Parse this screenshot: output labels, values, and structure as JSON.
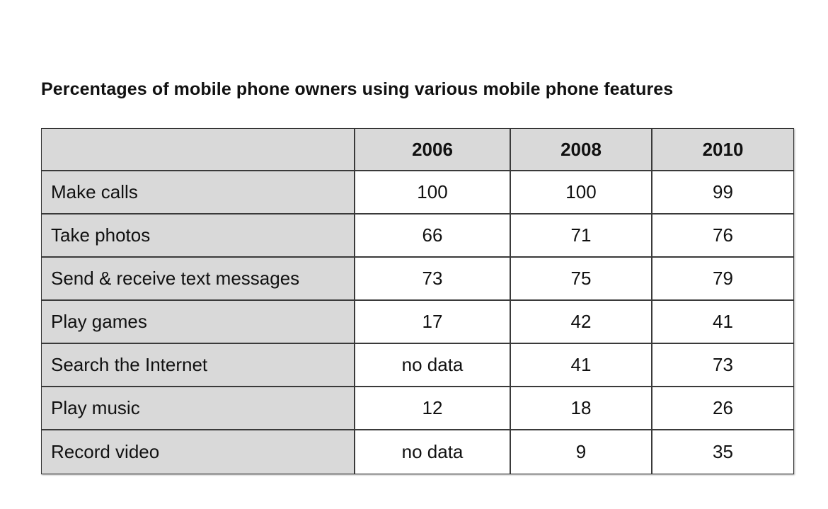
{
  "chart_data": {
    "type": "table",
    "title": "Percentages of mobile phone owners using various mobile phone features",
    "columns": [
      "",
      "2006",
      "2008",
      "2010"
    ],
    "rows": [
      {
        "feature": "Make calls",
        "values": [
          "100",
          "100",
          "99"
        ]
      },
      {
        "feature": "Take photos",
        "values": [
          "66",
          "71",
          "76"
        ]
      },
      {
        "feature": "Send & receive text messages",
        "values": [
          "73",
          "75",
          "79"
        ]
      },
      {
        "feature": "Play games",
        "values": [
          "17",
          "42",
          "41"
        ]
      },
      {
        "feature": "Search the Internet",
        "values": [
          "no data",
          "41",
          "73"
        ]
      },
      {
        "feature": "Play music",
        "values": [
          "12",
          "18",
          "26"
        ]
      },
      {
        "feature": "Record video",
        "values": [
          "no data",
          "9",
          "35"
        ]
      }
    ],
    "colors": {
      "header_fill": "#d9d9d9",
      "label_fill": "#d9d9d9",
      "cell_fill": "#ffffff",
      "border": "#3a3a3a"
    }
  }
}
